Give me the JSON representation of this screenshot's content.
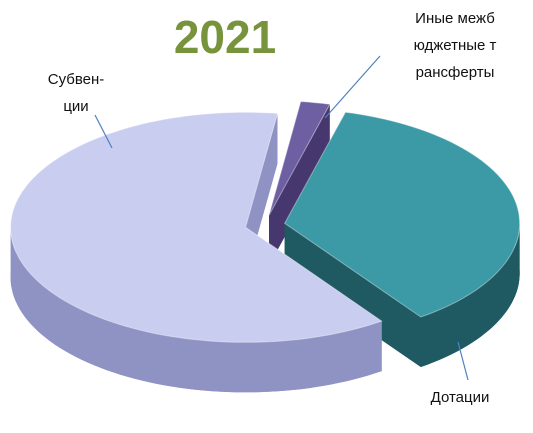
{
  "chart_data": {
    "type": "pie",
    "title": "2021",
    "categories": [
      "Дотации",
      "Субвен-ции",
      "Иные межбюджетные трансферты"
    ],
    "values": [
      36,
      62,
      2
    ],
    "colors": [
      "#3b9aa6",
      "#c9cdf0",
      "#6e5fa3"
    ],
    "wall_colors": [
      "#1f5962",
      "#8f93c4",
      "#46386f"
    ]
  }
}
